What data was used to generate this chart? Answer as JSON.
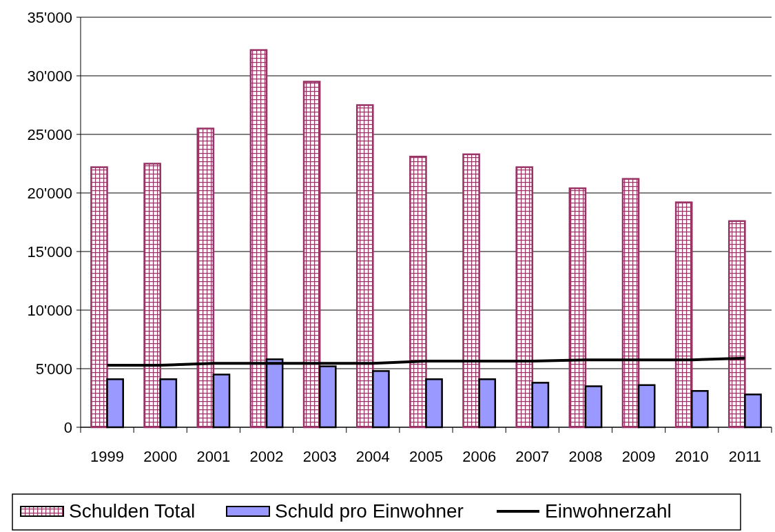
{
  "chart_data": {
    "type": "bar",
    "categories": [
      "1999",
      "2000",
      "2001",
      "2002",
      "2003",
      "2004",
      "2005",
      "2006",
      "2007",
      "2008",
      "2009",
      "2010",
      "2011"
    ],
    "series": [
      {
        "name": "Schulden Total",
        "color": "#993366",
        "values": [
          22200,
          22500,
          25500,
          32200,
          29500,
          27500,
          23100,
          23300,
          22200,
          20400,
          21200,
          19200,
          17600
        ]
      },
      {
        "name": "Schuld pro Einwohner",
        "color": "#9999ff",
        "values": [
          4100,
          4100,
          4500,
          5800,
          5200,
          4800,
          4100,
          4100,
          3800,
          3500,
          3600,
          3100,
          2800
        ]
      },
      {
        "name": "Einwohnerzahl",
        "type": "line",
        "color": "#000000",
        "values": [
          5300,
          5300,
          5450,
          5450,
          5450,
          5450,
          5650,
          5650,
          5650,
          5750,
          5750,
          5750,
          5900
        ]
      }
    ],
    "ylim": [
      0,
      35000
    ],
    "yticks": [
      {
        "value": 0,
        "label": "0"
      },
      {
        "value": 5000,
        "label": "5'000"
      },
      {
        "value": 10000,
        "label": "10'000"
      },
      {
        "value": 15000,
        "label": "15'000"
      },
      {
        "value": 20000,
        "label": "20'000"
      },
      {
        "value": 25000,
        "label": "25'000"
      },
      {
        "value": 30000,
        "label": "30'000"
      },
      {
        "value": 35000,
        "label": "35'000"
      }
    ],
    "grid": "y",
    "legend": "bottom",
    "marker": "none"
  }
}
